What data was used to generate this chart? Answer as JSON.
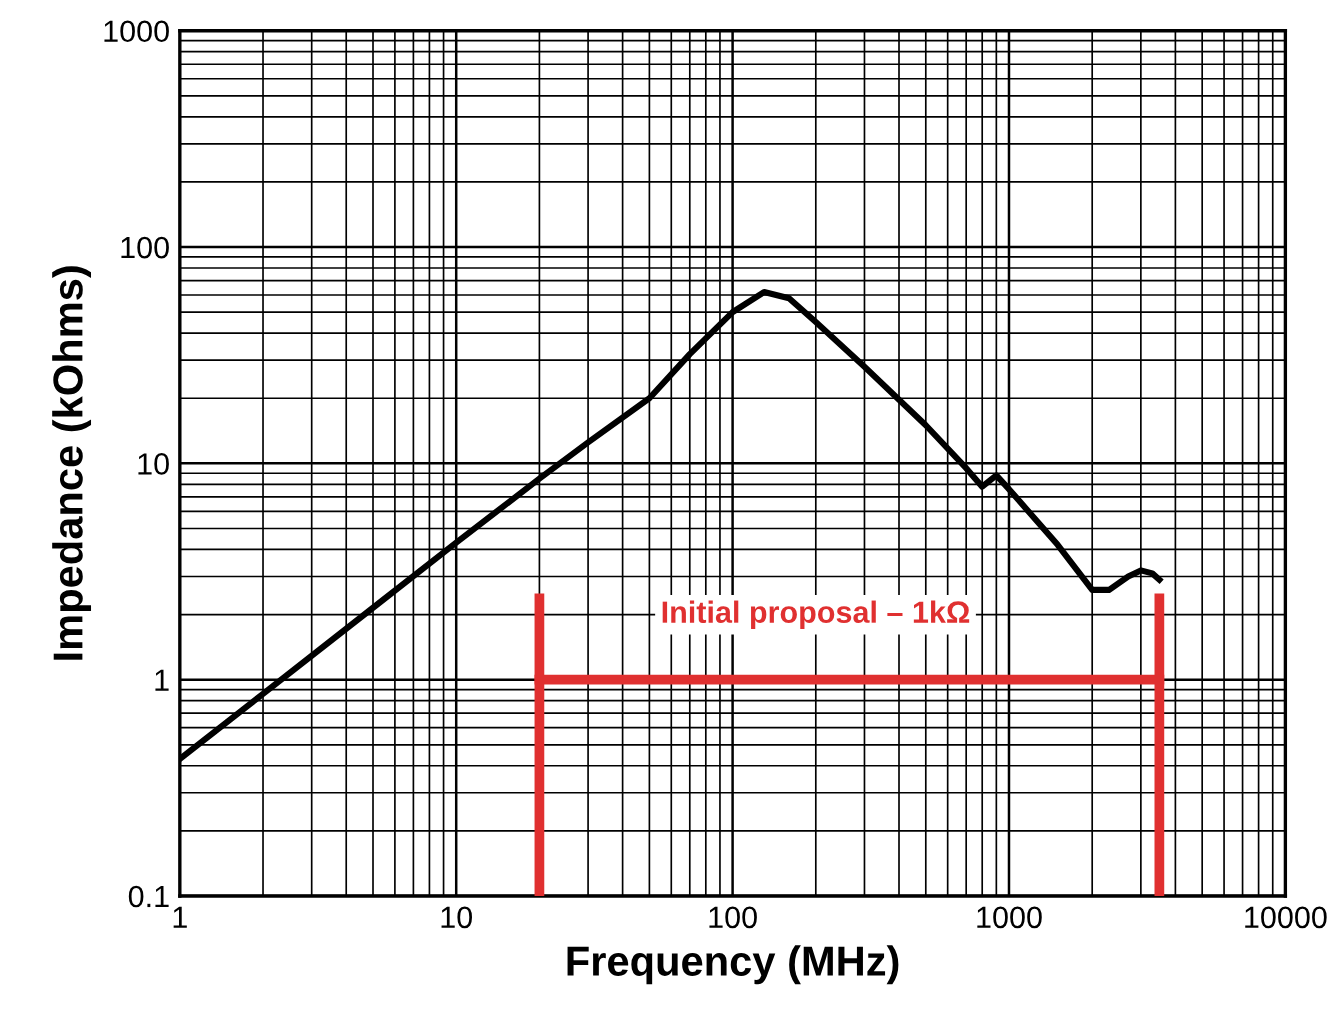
{
  "chart_data": {
    "type": "line",
    "xlabel": "Frequency (MHz)",
    "ylabel": "Impedance (kOhms)",
    "log": "xy",
    "grid": true,
    "xlim": [
      1,
      10000
    ],
    "ylim": [
      0.1,
      1000
    ],
    "xticks": [
      1,
      10,
      100,
      1000,
      10000
    ],
    "yticks": [
      0.1,
      1,
      10,
      100,
      1000
    ],
    "series": [
      {
        "color": "#000000",
        "x": [
          1,
          2,
          5,
          10,
          20,
          30,
          50,
          70,
          100,
          130,
          160,
          200,
          300,
          500,
          700,
          800,
          900,
          1000,
          1500,
          2000,
          2300,
          2700,
          3000,
          3300,
          3500
        ],
        "values": [
          0.43,
          0.86,
          2.15,
          4.3,
          8.5,
          12.5,
          20,
          32,
          50,
          62,
          58,
          45,
          28,
          15,
          9.5,
          7.8,
          8.8,
          7.6,
          4.2,
          2.6,
          2.6,
          3.0,
          3.2,
          3.1,
          2.9
        ]
      },
      {
        "color": "#e03030",
        "x": [
          20,
          3500
        ],
        "values": [
          1,
          1
        ],
        "errors": [
          [
            0.1,
            2.5
          ],
          [
            0.1,
            2.5
          ]
        ]
      }
    ],
    "annotations": [
      "Initial proposal – 1kΩ"
    ]
  }
}
